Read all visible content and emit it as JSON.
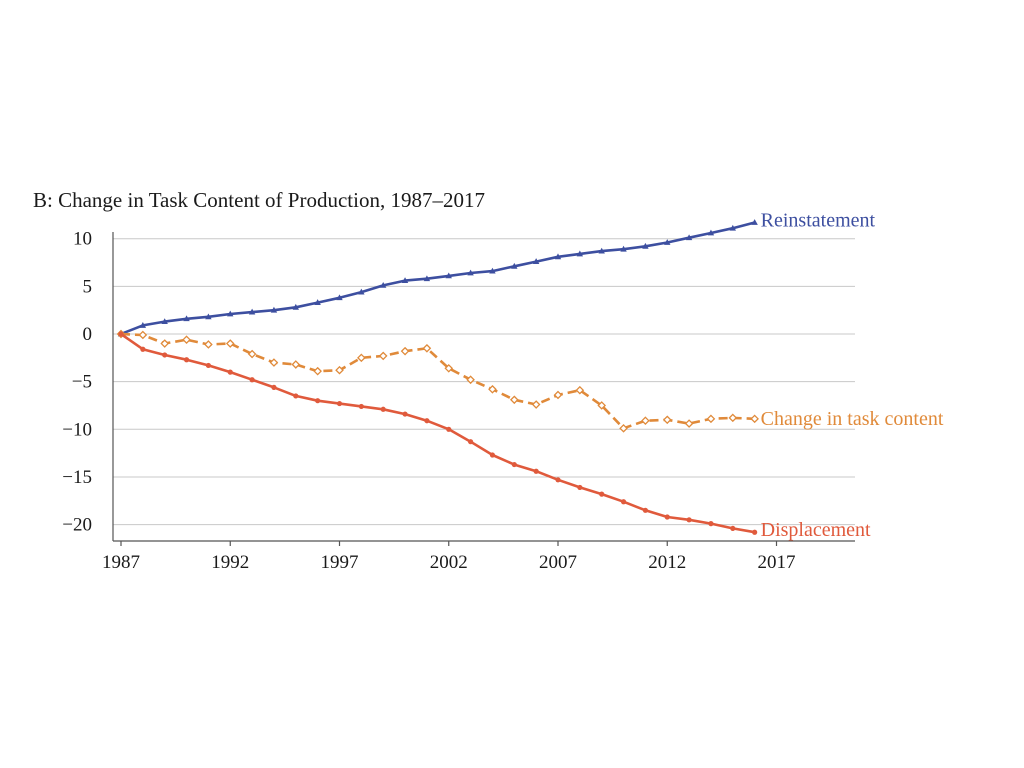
{
  "chart_data": {
    "type": "line",
    "title": "B: Change in Task Content of Production, 1987–2017",
    "xlabel": "",
    "ylabel": "",
    "xlim": [
      1987,
      2021
    ],
    "ylim": [
      -21,
      10
    ],
    "xticks": [
      1987,
      1992,
      1997,
      2002,
      2007,
      2012,
      2017
    ],
    "yticks": [
      10,
      5,
      0,
      -5,
      -10,
      -15,
      -20
    ],
    "ytick_labels": [
      "10",
      "5",
      "0",
      "−5",
      "−10",
      "−15",
      "−20"
    ],
    "grid": true,
    "x": [
      1987,
      1988,
      1989,
      1990,
      1991,
      1992,
      1993,
      1994,
      1995,
      1996,
      1997,
      1998,
      1999,
      2000,
      2001,
      2002,
      2003,
      2004,
      2005,
      2006,
      2007,
      2008,
      2009,
      2010,
      2011,
      2012,
      2013,
      2014,
      2015,
      2016
    ],
    "series": [
      {
        "name": "Reinstatement",
        "color": "#3d4fa0",
        "style": "solid",
        "marker": "triangle",
        "values": [
          0,
          0.9,
          1.3,
          1.6,
          1.8,
          2.1,
          2.3,
          2.5,
          2.8,
          3.3,
          3.8,
          4.4,
          5.1,
          5.6,
          5.8,
          6.1,
          6.4,
          6.6,
          7.1,
          7.6,
          8.1,
          8.4,
          8.7,
          8.9,
          9.2,
          9.6,
          10.1,
          10.6,
          11.1,
          11.7
        ]
      },
      {
        "name": "Change in task content",
        "color": "#e08a3a",
        "style": "dashed",
        "marker": "diamond-open",
        "values": [
          0,
          -0.1,
          -1.0,
          -0.6,
          -1.1,
          -1.0,
          -2.1,
          -3.0,
          -3.2,
          -3.9,
          -3.8,
          -2.5,
          -2.3,
          -1.8,
          -1.5,
          -3.6,
          -4.8,
          -5.8,
          -6.9,
          -7.4,
          -6.4,
          -5.9,
          -7.5,
          -9.9,
          -9.1,
          -9.0,
          -9.4,
          -8.9,
          -8.8,
          -8.9
        ]
      },
      {
        "name": "Displacement",
        "color": "#e05a3c",
        "style": "solid",
        "marker": "circle",
        "values": [
          0,
          -1.6,
          -2.2,
          -2.7,
          -3.3,
          -4.0,
          -4.8,
          -5.6,
          -6.5,
          -7.0,
          -7.3,
          -7.6,
          -7.9,
          -8.4,
          -9.1,
          -10.0,
          -11.3,
          -12.7,
          -13.7,
          -14.4,
          -15.3,
          -16.1,
          -16.8,
          -17.6,
          -18.5,
          -19.2,
          -19.5,
          -19.9,
          -20.4,
          -20.8
        ]
      }
    ]
  }
}
